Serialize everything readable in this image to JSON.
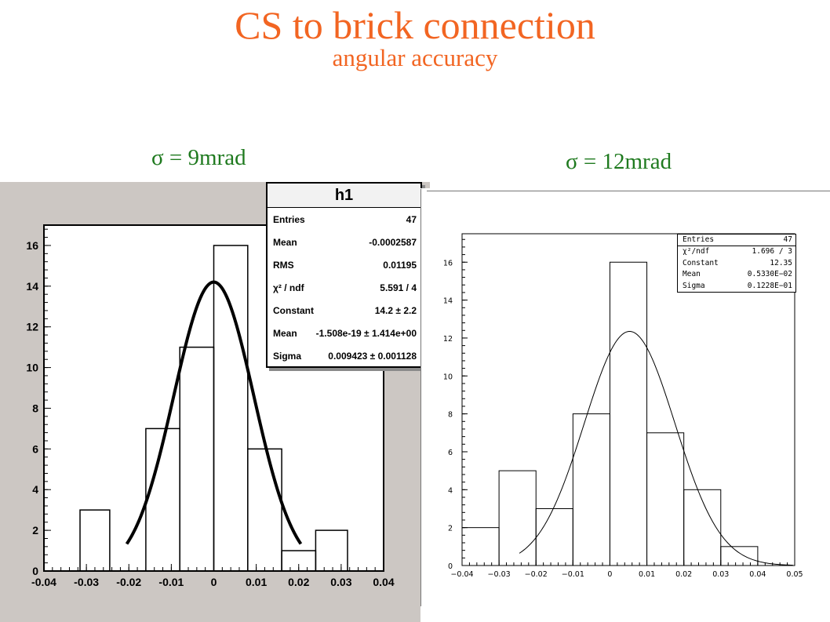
{
  "title": "CS to brick connection",
  "subtitle": "angular accuracy",
  "panels": {
    "left": {
      "sigma_label": "σ = 9mrad"
    },
    "right": {
      "sigma_label": "σ = 12mrad"
    }
  },
  "colors": {
    "title": "#f26522",
    "sigma": "#1f7a1f"
  },
  "chart_data": [
    {
      "type": "bar",
      "histogram": true,
      "name": "h1",
      "bin_edges": [
        -0.04,
        -0.0315,
        -0.0245,
        -0.016,
        -0.008,
        0.0,
        0.008,
        0.016,
        0.024,
        0.0315,
        0.04
      ],
      "values": [
        0,
        3,
        0,
        7,
        11,
        16,
        6,
        1,
        2,
        0
      ],
      "xlim": [
        -0.04,
        0.04
      ],
      "ylim": [
        0,
        17
      ],
      "xticks": [
        -0.04,
        -0.03,
        -0.02,
        -0.01,
        0,
        0.01,
        0.02,
        0.03,
        0.04
      ],
      "xtick_labels": [
        "-0.04",
        "-0.03",
        "-0.02",
        "-0.01",
        "0",
        "0.01",
        "0.02",
        "0.03",
        "0.04"
      ],
      "yticks": [
        0,
        2,
        4,
        6,
        8,
        10,
        12,
        14,
        16
      ],
      "yticks_labels": [
        "0",
        "2",
        "4",
        "6",
        "8",
        "10",
        "12",
        "14",
        "16"
      ],
      "fit": {
        "function": "gaussian",
        "constant": 14.2,
        "mean": 0,
        "sigma": 0.009423,
        "x_range": [
          -0.0205,
          0.0205
        ]
      },
      "stats": {
        "title": "h1",
        "rows": [
          {
            "label": "Entries",
            "value": "47"
          },
          {
            "label": "Mean",
            "value": "-0.0002587"
          },
          {
            "label": "RMS",
            "value": "0.01195"
          },
          {
            "label": "χ² / ndf",
            "value": "5.591 / 4"
          },
          {
            "label": "Constant",
            "value": "14.2 ± 2.2"
          },
          {
            "label": "Mean",
            "value": "-1.508e-19 ± 1.414e+00"
          },
          {
            "label": "Sigma",
            "value": "0.009423 ± 0.001128"
          }
        ]
      },
      "grid": false,
      "legend_position": "top-right"
    },
    {
      "type": "bar",
      "histogram": true,
      "bin_edges": [
        -0.04,
        -0.03,
        -0.02,
        -0.01,
        0.0,
        0.01,
        0.02,
        0.03,
        0.04
      ],
      "values": [
        2,
        5,
        3,
        8,
        16,
        7,
        4,
        1
      ],
      "xlim": [
        -0.04,
        0.05
      ],
      "ylim": [
        0,
        17.5
      ],
      "xticks": [
        -0.04,
        -0.03,
        -0.02,
        -0.01,
        0,
        0.01,
        0.02,
        0.03,
        0.04,
        0.05
      ],
      "xtick_labels": [
        "−0.04",
        "−0.03",
        "−0.02",
        "−0.01",
        "0",
        "0.01",
        "0.02",
        "0.03",
        "0.04",
        "0.05"
      ],
      "yticks": [
        0,
        2,
        4,
        6,
        8,
        10,
        12,
        14,
        16
      ],
      "yticks_labels": [
        "0",
        "2",
        "4",
        "6",
        "8",
        "10",
        "12",
        "14",
        "16"
      ],
      "fit": {
        "function": "gaussian",
        "constant": 12.35,
        "mean": 0.00533,
        "sigma": 0.01228,
        "x_range": [
          -0.0245,
          0.0495
        ]
      },
      "stats": {
        "rows": [
          {
            "label": "Entries",
            "value": "47"
          },
          {
            "label": "χ²/ndf",
            "value": "1.696   /  3"
          },
          {
            "label": "Constant",
            "value": "12.35"
          },
          {
            "label": "Mean",
            "value": "0.5330E−02"
          },
          {
            "label": "Sigma",
            "value": "0.1228E−01"
          }
        ]
      },
      "grid": false,
      "legend_position": "top-right"
    }
  ]
}
